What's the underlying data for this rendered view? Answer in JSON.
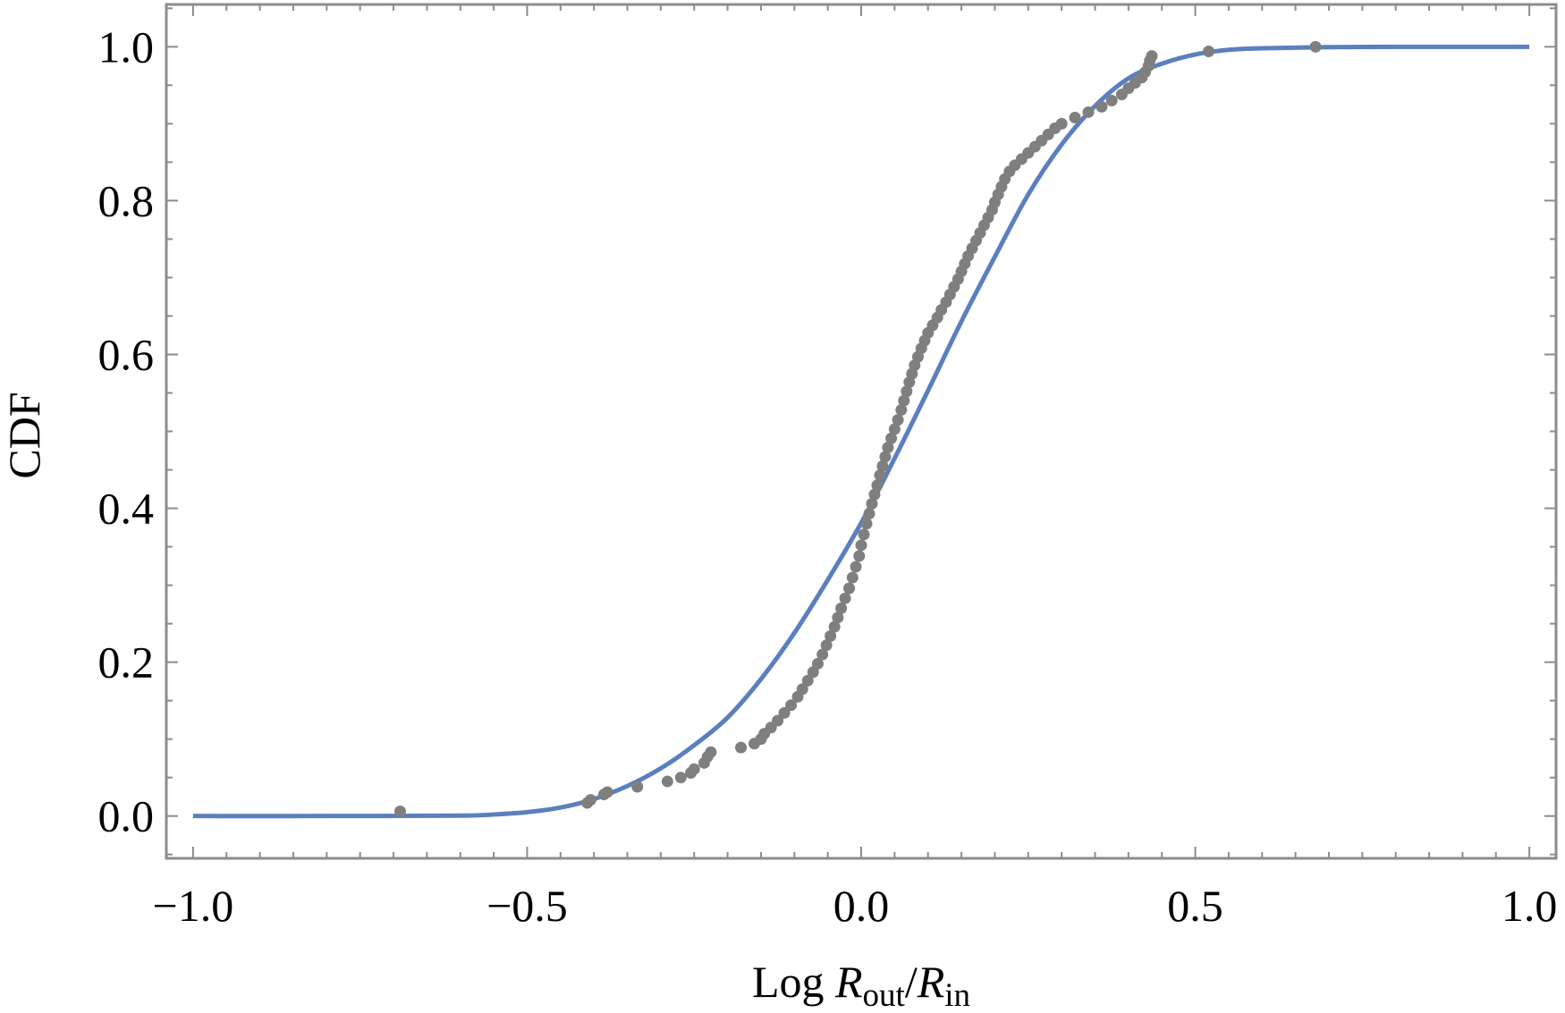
{
  "chart_data": {
    "type": "scatter",
    "title": "",
    "xlabel": {
      "prefix": "Log ",
      "num_symbol": "R",
      "num_sub": "out",
      "sep": "/",
      "den_symbol": "R",
      "den_sub": "in"
    },
    "ylabel": "CDF",
    "xlim": [
      -1.04,
      1.04
    ],
    "ylim": [
      -0.055,
      1.055
    ],
    "grid": false,
    "legend": "none",
    "x_ticks": [
      {
        "value": -1.0,
        "label": "−1.0"
      },
      {
        "value": -0.5,
        "label": "−0.5"
      },
      {
        "value": 0.0,
        "label": "0.0"
      },
      {
        "value": 0.5,
        "label": "0.5"
      },
      {
        "value": 1.0,
        "label": "1.0"
      }
    ],
    "y_ticks": [
      {
        "value": 0.0,
        "label": "0.0"
      },
      {
        "value": 0.2,
        "label": "0.2"
      },
      {
        "value": 0.4,
        "label": "0.4"
      },
      {
        "value": 0.6,
        "label": "0.6"
      },
      {
        "value": 0.8,
        "label": "0.8"
      },
      {
        "value": 1.0,
        "label": "1.0"
      }
    ],
    "series": [
      {
        "type": "line",
        "color": "#5b7fbf",
        "points": [
          [
            -1.0,
            0.0
          ],
          [
            -0.8,
            0.0
          ],
          [
            -0.6,
            0.0005
          ],
          [
            -0.55,
            0.002
          ],
          [
            -0.5,
            0.005
          ],
          [
            -0.45,
            0.011
          ],
          [
            -0.4,
            0.022
          ],
          [
            -0.35,
            0.039
          ],
          [
            -0.3,
            0.062
          ],
          [
            -0.25,
            0.092
          ],
          [
            -0.2,
            0.128
          ],
          [
            -0.15,
            0.178
          ],
          [
            -0.1,
            0.238
          ],
          [
            -0.05,
            0.307
          ],
          [
            0.0,
            0.381
          ],
          [
            0.05,
            0.465
          ],
          [
            0.1,
            0.553
          ],
          [
            0.15,
            0.643
          ],
          [
            0.2,
            0.727
          ],
          [
            0.25,
            0.808
          ],
          [
            0.3,
            0.873
          ],
          [
            0.35,
            0.923
          ],
          [
            0.4,
            0.959
          ],
          [
            0.45,
            0.978
          ],
          [
            0.5,
            0.99
          ],
          [
            0.55,
            0.996
          ],
          [
            0.6,
            0.998
          ],
          [
            0.7,
            0.9995
          ],
          [
            0.8,
            1.0
          ],
          [
            0.9,
            1.0
          ],
          [
            1.0,
            1.0
          ]
        ]
      },
      {
        "type": "scatter",
        "color": "#7f7f7f",
        "points": [
          [
            -0.69,
            0.006
          ],
          [
            -0.41,
            0.017
          ],
          [
            -0.405,
            0.021
          ],
          [
            -0.385,
            0.028
          ],
          [
            -0.38,
            0.031
          ],
          [
            -0.335,
            0.038
          ],
          [
            -0.29,
            0.045
          ],
          [
            -0.27,
            0.05
          ],
          [
            -0.255,
            0.056
          ],
          [
            -0.25,
            0.061
          ],
          [
            -0.235,
            0.069
          ],
          [
            -0.23,
            0.077
          ],
          [
            -0.225,
            0.083
          ],
          [
            -0.18,
            0.089
          ],
          [
            -0.16,
            0.094
          ],
          [
            -0.15,
            0.1
          ],
          [
            -0.145,
            0.107
          ],
          [
            -0.135,
            0.115
          ],
          [
            -0.125,
            0.124
          ],
          [
            -0.115,
            0.134
          ],
          [
            -0.105,
            0.144
          ],
          [
            -0.095,
            0.155
          ],
          [
            -0.088,
            0.165
          ],
          [
            -0.08,
            0.176
          ],
          [
            -0.072,
            0.187
          ],
          [
            -0.065,
            0.198
          ],
          [
            -0.058,
            0.21
          ],
          [
            -0.052,
            0.222
          ],
          [
            -0.046,
            0.234
          ],
          [
            -0.04,
            0.246
          ],
          [
            -0.035,
            0.258
          ],
          [
            -0.03,
            0.27
          ],
          [
            -0.024,
            0.283
          ],
          [
            -0.018,
            0.296
          ],
          [
            -0.013,
            0.31
          ],
          [
            -0.008,
            0.324
          ],
          [
            -0.003,
            0.338
          ],
          [
            0.0,
            0.352
          ],
          [
            0.004,
            0.366
          ],
          [
            0.008,
            0.38
          ],
          [
            0.012,
            0.393
          ],
          [
            0.016,
            0.406
          ],
          [
            0.02,
            0.418
          ],
          [
            0.024,
            0.43
          ],
          [
            0.028,
            0.443
          ],
          [
            0.032,
            0.455
          ],
          [
            0.036,
            0.467
          ],
          [
            0.04,
            0.479
          ],
          [
            0.045,
            0.491
          ],
          [
            0.05,
            0.503
          ],
          [
            0.055,
            0.515
          ],
          [
            0.06,
            0.528
          ],
          [
            0.064,
            0.54
          ],
          [
            0.068,
            0.552
          ],
          [
            0.072,
            0.564
          ],
          [
            0.076,
            0.575
          ],
          [
            0.08,
            0.586
          ],
          [
            0.085,
            0.597
          ],
          [
            0.09,
            0.608
          ],
          [
            0.095,
            0.618
          ],
          [
            0.1,
            0.628
          ],
          [
            0.107,
            0.638
          ],
          [
            0.114,
            0.648
          ],
          [
            0.12,
            0.658
          ],
          [
            0.127,
            0.668
          ],
          [
            0.133,
            0.678
          ],
          [
            0.139,
            0.688
          ],
          [
            0.145,
            0.698
          ],
          [
            0.15,
            0.708
          ],
          [
            0.155,
            0.718
          ],
          [
            0.16,
            0.728
          ],
          [
            0.166,
            0.738
          ],
          [
            0.172,
            0.748
          ],
          [
            0.178,
            0.758
          ],
          [
            0.184,
            0.768
          ],
          [
            0.19,
            0.778
          ],
          [
            0.196,
            0.788
          ],
          [
            0.2,
            0.798
          ],
          [
            0.205,
            0.808
          ],
          [
            0.21,
            0.818
          ],
          [
            0.215,
            0.828
          ],
          [
            0.222,
            0.838
          ],
          [
            0.23,
            0.846
          ],
          [
            0.24,
            0.854
          ],
          [
            0.25,
            0.862
          ],
          [
            0.26,
            0.87
          ],
          [
            0.27,
            0.878
          ],
          [
            0.28,
            0.886
          ],
          [
            0.29,
            0.894
          ],
          [
            0.3,
            0.9
          ],
          [
            0.32,
            0.908
          ],
          [
            0.34,
            0.915
          ],
          [
            0.36,
            0.922
          ],
          [
            0.375,
            0.93
          ],
          [
            0.39,
            0.938
          ],
          [
            0.4,
            0.946
          ],
          [
            0.41,
            0.953
          ],
          [
            0.42,
            0.96
          ],
          [
            0.425,
            0.967
          ],
          [
            0.43,
            0.975
          ],
          [
            0.432,
            0.982
          ],
          [
            0.435,
            0.988
          ],
          [
            0.52,
            0.994
          ],
          [
            0.68,
            1.0
          ]
        ]
      }
    ]
  }
}
